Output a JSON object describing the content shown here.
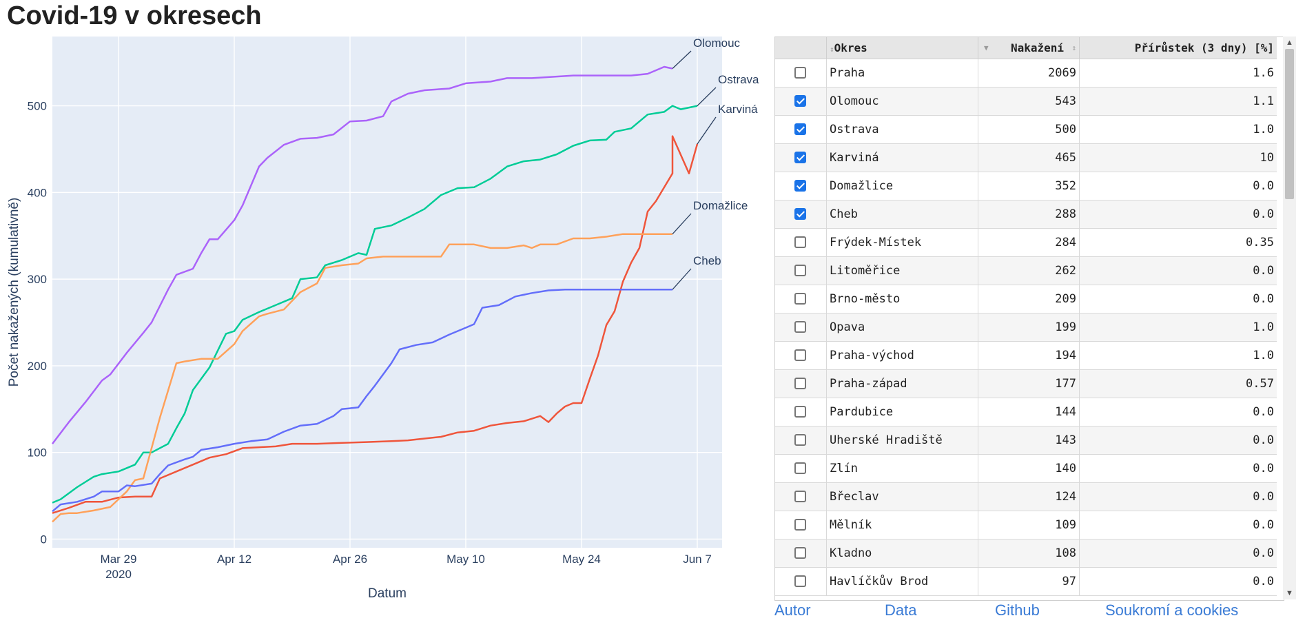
{
  "page": {
    "title": "Covid-19 v okresech"
  },
  "chart_data": {
    "type": "line",
    "xlabel": "Datum",
    "ylabel": "Počet nakažených (kumulativně)",
    "x_range": [
      "2020-03-21",
      "2020-06-10"
    ],
    "ylim": [
      -10,
      580
    ],
    "x_ticks": [
      {
        "date": "2020-03-29",
        "label": "Mar 29",
        "sublabel": "2020"
      },
      {
        "date": "2020-04-12",
        "label": "Apr 12",
        "sublabel": ""
      },
      {
        "date": "2020-04-26",
        "label": "Apr 26",
        "sublabel": ""
      },
      {
        "date": "2020-05-10",
        "label": "May 10",
        "sublabel": ""
      },
      {
        "date": "2020-05-24",
        "label": "May 24",
        "sublabel": ""
      },
      {
        "date": "2020-06-07",
        "label": "Jun 7",
        "sublabel": ""
      }
    ],
    "y_ticks": [
      0,
      100,
      200,
      300,
      400,
      500
    ],
    "grid": true,
    "series": [
      {
        "name": "Olomouc",
        "color": "#ab63fa",
        "points": [
          [
            "2020-03-21",
            110
          ],
          [
            "2020-03-23",
            135
          ],
          [
            "2020-03-25",
            158
          ],
          [
            "2020-03-27",
            183
          ],
          [
            "2020-03-28",
            190
          ],
          [
            "2020-03-30",
            215
          ],
          [
            "2020-04-01",
            238
          ],
          [
            "2020-04-02",
            250
          ],
          [
            "2020-04-04",
            288
          ],
          [
            "2020-04-05",
            305
          ],
          [
            "2020-04-07",
            312
          ],
          [
            "2020-04-08",
            330
          ],
          [
            "2020-04-09",
            346
          ],
          [
            "2020-04-10",
            346
          ],
          [
            "2020-04-12",
            368
          ],
          [
            "2020-04-13",
            385
          ],
          [
            "2020-04-15",
            430
          ],
          [
            "2020-04-16",
            440
          ],
          [
            "2020-04-18",
            455
          ],
          [
            "2020-04-20",
            462
          ],
          [
            "2020-04-22",
            463
          ],
          [
            "2020-04-24",
            467
          ],
          [
            "2020-04-26",
            482
          ],
          [
            "2020-04-28",
            483
          ],
          [
            "2020-04-30",
            488
          ],
          [
            "2020-05-01",
            505
          ],
          [
            "2020-05-03",
            514
          ],
          [
            "2020-05-05",
            518
          ],
          [
            "2020-05-08",
            520
          ],
          [
            "2020-05-10",
            526
          ],
          [
            "2020-05-13",
            528
          ],
          [
            "2020-05-15",
            532
          ],
          [
            "2020-05-18",
            532
          ],
          [
            "2020-05-23",
            535
          ],
          [
            "2020-05-27",
            535
          ],
          [
            "2020-05-30",
            535
          ],
          [
            "2020-06-01",
            537
          ],
          [
            "2020-06-03",
            545
          ],
          [
            "2020-06-04",
            543
          ]
        ]
      },
      {
        "name": "Ostrava",
        "color": "#00cc96",
        "points": [
          [
            "2020-03-21",
            42
          ],
          [
            "2020-03-22",
            46
          ],
          [
            "2020-03-24",
            60
          ],
          [
            "2020-03-26",
            72
          ],
          [
            "2020-03-27",
            75
          ],
          [
            "2020-03-29",
            78
          ],
          [
            "2020-03-31",
            86
          ],
          [
            "2020-04-01",
            100
          ],
          [
            "2020-04-02",
            100
          ],
          [
            "2020-04-04",
            110
          ],
          [
            "2020-04-05",
            128
          ],
          [
            "2020-04-06",
            145
          ],
          [
            "2020-04-07",
            172
          ],
          [
            "2020-04-09",
            198
          ],
          [
            "2020-04-11",
            237
          ],
          [
            "2020-04-12",
            240
          ],
          [
            "2020-04-13",
            253
          ],
          [
            "2020-04-15",
            262
          ],
          [
            "2020-04-17",
            270
          ],
          [
            "2020-04-19",
            278
          ],
          [
            "2020-04-20",
            300
          ],
          [
            "2020-04-22",
            302
          ],
          [
            "2020-04-23",
            316
          ],
          [
            "2020-04-25",
            322
          ],
          [
            "2020-04-27",
            330
          ],
          [
            "2020-04-28",
            328
          ],
          [
            "2020-04-29",
            358
          ],
          [
            "2020-05-01",
            362
          ],
          [
            "2020-05-03",
            371
          ],
          [
            "2020-05-05",
            381
          ],
          [
            "2020-05-07",
            397
          ],
          [
            "2020-05-09",
            405
          ],
          [
            "2020-05-11",
            406
          ],
          [
            "2020-05-13",
            416
          ],
          [
            "2020-05-15",
            430
          ],
          [
            "2020-05-17",
            436
          ],
          [
            "2020-05-19",
            438
          ],
          [
            "2020-05-21",
            444
          ],
          [
            "2020-05-23",
            454
          ],
          [
            "2020-05-25",
            460
          ],
          [
            "2020-05-27",
            461
          ],
          [
            "2020-05-28",
            470
          ],
          [
            "2020-05-30",
            474
          ],
          [
            "2020-06-01",
            490
          ],
          [
            "2020-06-03",
            493
          ],
          [
            "2020-06-05",
            496
          ],
          [
            "2020-06-07",
            500
          ],
          [
            "2020-06-04",
            500
          ]
        ]
      },
      {
        "name": "Karviná",
        "color": "#ef553b",
        "points": [
          [
            "2020-03-21",
            30
          ],
          [
            "2020-03-23",
            36
          ],
          [
            "2020-03-25",
            43
          ],
          [
            "2020-03-27",
            43
          ],
          [
            "2020-03-29",
            48
          ],
          [
            "2020-03-31",
            49
          ],
          [
            "2020-04-02",
            49
          ],
          [
            "2020-04-03",
            70
          ],
          [
            "2020-04-05",
            78
          ],
          [
            "2020-04-07",
            86
          ],
          [
            "2020-04-09",
            94
          ],
          [
            "2020-04-11",
            98
          ],
          [
            "2020-04-13",
            105
          ],
          [
            "2020-04-15",
            106
          ],
          [
            "2020-04-17",
            107
          ],
          [
            "2020-04-19",
            110
          ],
          [
            "2020-04-22",
            110
          ],
          [
            "2020-04-25",
            111
          ],
          [
            "2020-04-28",
            112
          ],
          [
            "2020-05-01",
            113
          ],
          [
            "2020-05-03",
            114
          ],
          [
            "2020-05-05",
            116
          ],
          [
            "2020-05-07",
            118
          ],
          [
            "2020-05-09",
            123
          ],
          [
            "2020-05-11",
            125
          ],
          [
            "2020-05-13",
            131
          ],
          [
            "2020-05-15",
            134
          ],
          [
            "2020-05-17",
            136
          ],
          [
            "2020-05-19",
            142
          ],
          [
            "2020-05-20",
            135
          ],
          [
            "2020-05-21",
            145
          ],
          [
            "2020-05-22",
            153
          ],
          [
            "2020-05-23",
            157
          ],
          [
            "2020-05-24",
            157
          ],
          [
            "2020-05-25",
            185
          ],
          [
            "2020-05-26",
            212
          ],
          [
            "2020-05-27",
            247
          ],
          [
            "2020-05-28",
            263
          ],
          [
            "2020-05-29",
            297
          ],
          [
            "2020-05-30",
            319
          ],
          [
            "2020-05-31",
            336
          ],
          [
            "2020-06-01",
            378
          ],
          [
            "2020-06-02",
            390
          ],
          [
            "2020-06-04",
            422
          ],
          [
            "2020-06-06",
            422
          ],
          [
            "2020-06-07",
            456
          ],
          [
            "2020-06-04",
            465
          ]
        ]
      },
      {
        "name": "Domažlice",
        "color": "#ffa15a",
        "points": [
          [
            "2020-03-21",
            20
          ],
          [
            "2020-03-22",
            29
          ],
          [
            "2020-03-23",
            30
          ],
          [
            "2020-03-24",
            30
          ],
          [
            "2020-03-26",
            33
          ],
          [
            "2020-03-28",
            37
          ],
          [
            "2020-03-30",
            55
          ],
          [
            "2020-03-31",
            68
          ],
          [
            "2020-04-01",
            70
          ],
          [
            "2020-04-03",
            140
          ],
          [
            "2020-04-05",
            203
          ],
          [
            "2020-04-06",
            205
          ],
          [
            "2020-04-08",
            208
          ],
          [
            "2020-04-10",
            208
          ],
          [
            "2020-04-12",
            225
          ],
          [
            "2020-04-13",
            240
          ],
          [
            "2020-04-15",
            257
          ],
          [
            "2020-04-16",
            260
          ],
          [
            "2020-04-18",
            265
          ],
          [
            "2020-04-20",
            285
          ],
          [
            "2020-04-22",
            295
          ],
          [
            "2020-04-23",
            313
          ],
          [
            "2020-04-25",
            316
          ],
          [
            "2020-04-27",
            318
          ],
          [
            "2020-04-28",
            324
          ],
          [
            "2020-04-30",
            326
          ],
          [
            "2020-05-02",
            326
          ],
          [
            "2020-05-05",
            326
          ],
          [
            "2020-05-07",
            326
          ],
          [
            "2020-05-08",
            340
          ],
          [
            "2020-05-11",
            340
          ],
          [
            "2020-05-13",
            336
          ],
          [
            "2020-05-15",
            336
          ],
          [
            "2020-05-17",
            339
          ],
          [
            "2020-05-18",
            336
          ],
          [
            "2020-05-19",
            340
          ],
          [
            "2020-05-21",
            340
          ],
          [
            "2020-05-23",
            347
          ],
          [
            "2020-05-25",
            347
          ],
          [
            "2020-05-27",
            349
          ],
          [
            "2020-05-29",
            352
          ],
          [
            "2020-06-01",
            352
          ],
          [
            "2020-06-04",
            352
          ]
        ]
      },
      {
        "name": "Cheb",
        "color": "#636efa",
        "points": [
          [
            "2020-03-21",
            32
          ],
          [
            "2020-03-22",
            40
          ],
          [
            "2020-03-24",
            43
          ],
          [
            "2020-03-26",
            49
          ],
          [
            "2020-03-27",
            55
          ],
          [
            "2020-03-29",
            55
          ],
          [
            "2020-03-30",
            62
          ],
          [
            "2020-03-31",
            61
          ],
          [
            "2020-04-02",
            64
          ],
          [
            "2020-04-03",
            75
          ],
          [
            "2020-04-04",
            85
          ],
          [
            "2020-04-06",
            92
          ],
          [
            "2020-04-07",
            95
          ],
          [
            "2020-04-08",
            103
          ],
          [
            "2020-04-10",
            106
          ],
          [
            "2020-04-12",
            110
          ],
          [
            "2020-04-14",
            113
          ],
          [
            "2020-04-16",
            115
          ],
          [
            "2020-04-18",
            124
          ],
          [
            "2020-04-20",
            131
          ],
          [
            "2020-04-22",
            133
          ],
          [
            "2020-04-24",
            142
          ],
          [
            "2020-04-25",
            150
          ],
          [
            "2020-04-27",
            152
          ],
          [
            "2020-04-28",
            165
          ],
          [
            "2020-04-29",
            177
          ],
          [
            "2020-05-01",
            203
          ],
          [
            "2020-05-02",
            219
          ],
          [
            "2020-05-04",
            224
          ],
          [
            "2020-05-06",
            227
          ],
          [
            "2020-05-08",
            236
          ],
          [
            "2020-05-10",
            244
          ],
          [
            "2020-05-11",
            248
          ],
          [
            "2020-05-12",
            267
          ],
          [
            "2020-05-14",
            270
          ],
          [
            "2020-05-16",
            280
          ],
          [
            "2020-05-18",
            284
          ],
          [
            "2020-05-20",
            287
          ],
          [
            "2020-05-22",
            288
          ],
          [
            "2020-05-26",
            288
          ],
          [
            "2020-05-30",
            288
          ],
          [
            "2020-06-04",
            288
          ]
        ]
      }
    ]
  },
  "table": {
    "headers": {
      "okres": "Okres",
      "nakazeni": "Nakažení",
      "prirustek": "Přírůstek (3 dny) [%]"
    },
    "rows": [
      {
        "checked": false,
        "okres": "Praha",
        "nakazeni": "2069",
        "prirustek": "1.6"
      },
      {
        "checked": true,
        "okres": "Olomouc",
        "nakazeni": "543",
        "prirustek": "1.1"
      },
      {
        "checked": true,
        "okres": "Ostrava",
        "nakazeni": "500",
        "prirustek": "1.0"
      },
      {
        "checked": true,
        "okres": "Karviná",
        "nakazeni": "465",
        "prirustek": "10"
      },
      {
        "checked": true,
        "okres": "Domažlice",
        "nakazeni": "352",
        "prirustek": "0.0"
      },
      {
        "checked": true,
        "okres": "Cheb",
        "nakazeni": "288",
        "prirustek": "0.0"
      },
      {
        "checked": false,
        "okres": "Frýdek-Místek",
        "nakazeni": "284",
        "prirustek": "0.35"
      },
      {
        "checked": false,
        "okres": "Litoměřice",
        "nakazeni": "262",
        "prirustek": "0.0"
      },
      {
        "checked": false,
        "okres": "Brno-město",
        "nakazeni": "209",
        "prirustek": "0.0"
      },
      {
        "checked": false,
        "okres": "Opava",
        "nakazeni": "199",
        "prirustek": "1.0"
      },
      {
        "checked": false,
        "okres": "Praha-východ",
        "nakazeni": "194",
        "prirustek": "1.0"
      },
      {
        "checked": false,
        "okres": "Praha-západ",
        "nakazeni": "177",
        "prirustek": "0.57"
      },
      {
        "checked": false,
        "okres": "Pardubice",
        "nakazeni": "144",
        "prirustek": "0.0"
      },
      {
        "checked": false,
        "okres": "Uherské Hradiště",
        "nakazeni": "143",
        "prirustek": "0.0"
      },
      {
        "checked": false,
        "okres": "Zlín",
        "nakazeni": "140",
        "prirustek": "0.0"
      },
      {
        "checked": false,
        "okres": "Břeclav",
        "nakazeni": "124",
        "prirustek": "0.0"
      },
      {
        "checked": false,
        "okres": "Mělník",
        "nakazeni": "109",
        "prirustek": "0.0"
      },
      {
        "checked": false,
        "okres": "Kladno",
        "nakazeni": "108",
        "prirustek": "0.0"
      },
      {
        "checked": false,
        "okres": "Havlíčkův Brod",
        "nakazeni": "97",
        "prirustek": "0.0"
      }
    ]
  },
  "footer": {
    "autor": "Autor",
    "data": "Data",
    "github": "Github",
    "privacy": "Soukromí a cookies"
  }
}
